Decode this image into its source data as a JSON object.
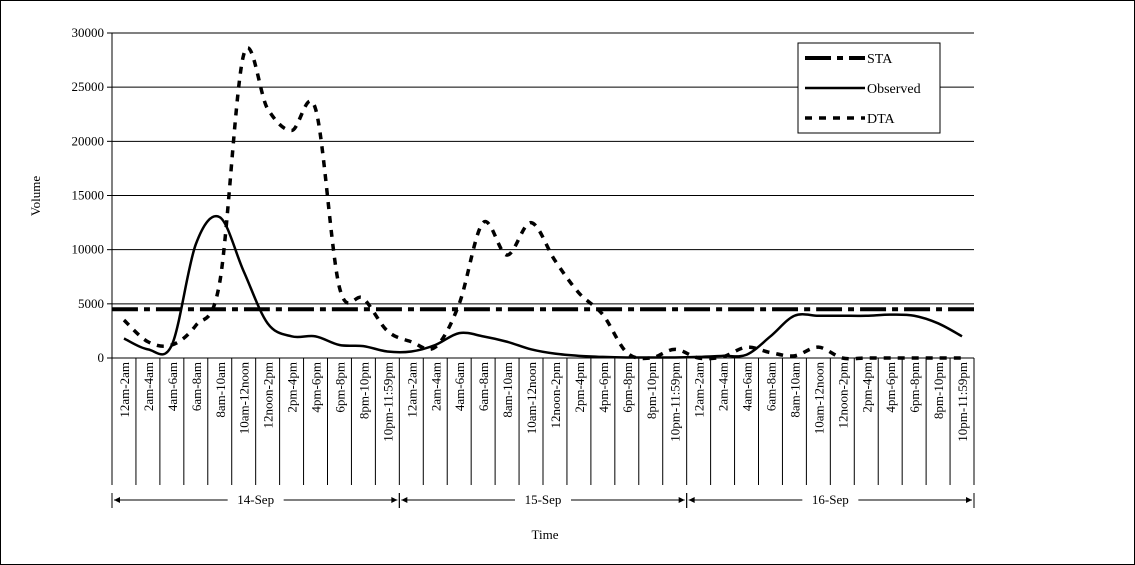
{
  "chart_data": {
    "type": "line",
    "title": "",
    "xlabel": "Time",
    "ylabel": "Volume",
    "ylim": [
      0,
      30000
    ],
    "yticks": [
      "0",
      "5000",
      "10000",
      "15000",
      "20000",
      "25000",
      "30000"
    ],
    "grid": "horizontal",
    "legend_position": "top-right",
    "categories": [
      "12am-2am",
      "2am-4am",
      "4am-6am",
      "6am-8am",
      "8am-10am",
      "10am-12noon",
      "12noon-2pm",
      "2pm-4pm",
      "4pm-6pm",
      "6pm-8pm",
      "8pm-10pm",
      "10pm-11:59pm",
      "12am-2am",
      "2am-4am",
      "4am-6am",
      "6am-8am",
      "8am-10am",
      "10am-12noon",
      "12noon-2pm",
      "2pm-4pm",
      "4pm-6pm",
      "6pm-8pm",
      "8pm-10pm",
      "10pm-11:59pm",
      "12am-2am",
      "2am-4am",
      "4am-6am",
      "6am-8am",
      "8am-10am",
      "10am-12noon",
      "12noon-2pm",
      "2pm-4pm",
      "4pm-6pm",
      "6pm-8pm",
      "8pm-10pm",
      "10pm-11:59pm"
    ],
    "day_groups": [
      {
        "label": "14-Sep",
        "count": 12
      },
      {
        "label": "15-Sep",
        "count": 12
      },
      {
        "label": "16-Sep",
        "count": 12
      }
    ],
    "series": [
      {
        "name": "STA",
        "style": "dashdot",
        "values": [
          4500,
          4500,
          4500,
          4500,
          4500,
          4500,
          4500,
          4500,
          4500,
          4500,
          4500,
          4500,
          4500,
          4500,
          4500,
          4500,
          4500,
          4500,
          4500,
          4500,
          4500,
          4500,
          4500,
          4500,
          4500,
          4500,
          4500,
          4500,
          4500,
          4500,
          4500,
          4500,
          4500,
          4500,
          4500,
          4500
        ]
      },
      {
        "name": "Observed",
        "style": "solid",
        "values": [
          1800,
          800,
          1200,
          10500,
          13000,
          8000,
          3200,
          2000,
          2000,
          1200,
          1100,
          600,
          600,
          1200,
          2300,
          2000,
          1500,
          800,
          400,
          200,
          100,
          50,
          50,
          50,
          100,
          200,
          300,
          2000,
          3900,
          3900,
          3900,
          3900,
          4000,
          3900,
          3200,
          2000
        ]
      },
      {
        "name": "DTA",
        "style": "dotted",
        "values": [
          3500,
          1500,
          1200,
          3000,
          7000,
          28000,
          23000,
          21000,
          23000,
          6500,
          5500,
          2500,
          1500,
          1000,
          5000,
          12500,
          9500,
          12500,
          9000,
          6000,
          4000,
          500,
          0,
          800,
          0,
          100,
          1000,
          500,
          200,
          1000,
          0,
          0,
          0,
          0,
          0,
          0
        ]
      }
    ]
  }
}
